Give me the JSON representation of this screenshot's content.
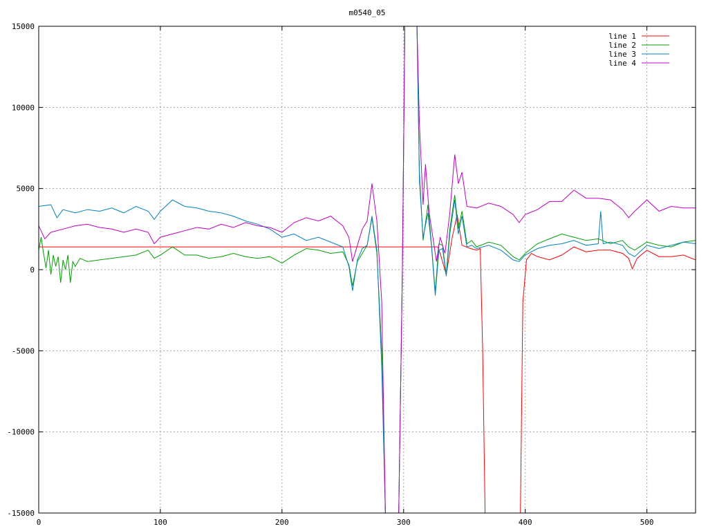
{
  "chart_data": {
    "type": "line",
    "title": "m0540_05",
    "xlabel": "",
    "ylabel": "",
    "xlim": [
      0,
      540
    ],
    "ylim": [
      -15000,
      15000
    ],
    "x_ticks": [
      0,
      100,
      200,
      300,
      400,
      500
    ],
    "y_ticks": [
      -15000,
      -10000,
      -5000,
      0,
      5000,
      10000,
      15000
    ],
    "x_tick_labels": [
      "0",
      "100",
      "200",
      "300",
      "400",
      "500"
    ],
    "y_tick_labels": [
      "-15000",
      "-10000",
      "-5000",
      "0",
      "5000",
      "10000",
      "15000"
    ],
    "grid": true,
    "legend_position": "top-right",
    "series": [
      {
        "name": "line 1",
        "color": "#ff0000",
        "points": [
          [
            0,
            1400
          ],
          [
            100,
            1400
          ],
          [
            200,
            1400
          ],
          [
            300,
            1400
          ],
          [
            328,
            1400
          ],
          [
            330,
            1000
          ],
          [
            335,
            -300
          ],
          [
            340,
            2000
          ],
          [
            344,
            3400
          ],
          [
            348,
            1500
          ],
          [
            355,
            1300
          ],
          [
            360,
            1200
          ],
          [
            363,
            1300
          ],
          [
            365,
            -5000
          ],
          [
            367,
            -15000
          ],
          [
            396,
            -15000
          ],
          [
            398,
            -2000
          ],
          [
            401,
            600
          ],
          [
            405,
            1000
          ],
          [
            410,
            800
          ],
          [
            420,
            600
          ],
          [
            430,
            900
          ],
          [
            440,
            1400
          ],
          [
            450,
            1100
          ],
          [
            460,
            1200
          ],
          [
            470,
            1200
          ],
          [
            480,
            1000
          ],
          [
            485,
            700
          ],
          [
            488,
            50
          ],
          [
            492,
            700
          ],
          [
            500,
            1200
          ],
          [
            510,
            800
          ],
          [
            520,
            800
          ],
          [
            530,
            900
          ],
          [
            540,
            600
          ]
        ]
      },
      {
        "name": "line 2",
        "color": "#00a000",
        "points": [
          [
            0,
            1200
          ],
          [
            2,
            2000
          ],
          [
            4,
            1000
          ],
          [
            6,
            100
          ],
          [
            8,
            1200
          ],
          [
            10,
            -300
          ],
          [
            12,
            900
          ],
          [
            14,
            200
          ],
          [
            16,
            800
          ],
          [
            18,
            -800
          ],
          [
            20,
            600
          ],
          [
            22,
            0
          ],
          [
            24,
            900
          ],
          [
            26,
            -800
          ],
          [
            28,
            500
          ],
          [
            30,
            200
          ],
          [
            34,
            700
          ],
          [
            40,
            500
          ],
          [
            50,
            600
          ],
          [
            60,
            700
          ],
          [
            70,
            800
          ],
          [
            80,
            900
          ],
          [
            90,
            1200
          ],
          [
            95,
            700
          ],
          [
            100,
            900
          ],
          [
            110,
            1400
          ],
          [
            120,
            900
          ],
          [
            130,
            900
          ],
          [
            140,
            700
          ],
          [
            150,
            800
          ],
          [
            160,
            1000
          ],
          [
            170,
            800
          ],
          [
            180,
            700
          ],
          [
            190,
            800
          ],
          [
            200,
            400
          ],
          [
            210,
            900
          ],
          [
            220,
            1300
          ],
          [
            230,
            1200
          ],
          [
            240,
            1000
          ],
          [
            250,
            1100
          ],
          [
            255,
            300
          ],
          [
            258,
            -1000
          ],
          [
            262,
            500
          ],
          [
            266,
            1000
          ],
          [
            270,
            1500
          ],
          [
            274,
            3200
          ],
          [
            278,
            1000
          ],
          [
            282,
            -5000
          ],
          [
            285,
            -15000
          ],
          [
            296,
            -15000
          ],
          [
            299,
            0
          ],
          [
            301,
            15000
          ],
          [
            311,
            15000
          ],
          [
            313,
            6000
          ],
          [
            316,
            1800
          ],
          [
            320,
            4000
          ],
          [
            323,
            1500
          ],
          [
            326,
            -1400
          ],
          [
            329,
            1600
          ],
          [
            332,
            1500
          ],
          [
            335,
            -300
          ],
          [
            338,
            2500
          ],
          [
            342,
            4600
          ],
          [
            345,
            2500
          ],
          [
            348,
            3600
          ],
          [
            352,
            1600
          ],
          [
            356,
            1800
          ],
          [
            360,
            1400
          ],
          [
            370,
            1700
          ],
          [
            380,
            1500
          ],
          [
            390,
            800
          ],
          [
            395,
            600
          ],
          [
            400,
            1000
          ],
          [
            410,
            1600
          ],
          [
            420,
            1900
          ],
          [
            430,
            2200
          ],
          [
            440,
            2000
          ],
          [
            450,
            1800
          ],
          [
            460,
            1900
          ],
          [
            470,
            1600
          ],
          [
            480,
            1800
          ],
          [
            485,
            1400
          ],
          [
            490,
            1200
          ],
          [
            500,
            1700
          ],
          [
            510,
            1500
          ],
          [
            520,
            1400
          ],
          [
            530,
            1700
          ],
          [
            540,
            1800
          ]
        ]
      },
      {
        "name": "line 3",
        "color": "#0080c0",
        "points": [
          [
            0,
            3900
          ],
          [
            10,
            4000
          ],
          [
            15,
            3200
          ],
          [
            20,
            3700
          ],
          [
            30,
            3500
          ],
          [
            40,
            3700
          ],
          [
            50,
            3600
          ],
          [
            60,
            3800
          ],
          [
            70,
            3500
          ],
          [
            80,
            3900
          ],
          [
            90,
            3600
          ],
          [
            95,
            3100
          ],
          [
            100,
            3600
          ],
          [
            110,
            4300
          ],
          [
            120,
            3900
          ],
          [
            130,
            3800
          ],
          [
            140,
            3600
          ],
          [
            150,
            3500
          ],
          [
            160,
            3300
          ],
          [
            170,
            3000
          ],
          [
            180,
            2800
          ],
          [
            190,
            2500
          ],
          [
            200,
            2000
          ],
          [
            210,
            2200
          ],
          [
            220,
            1800
          ],
          [
            230,
            2000
          ],
          [
            240,
            1700
          ],
          [
            250,
            1400
          ],
          [
            255,
            200
          ],
          [
            258,
            -1300
          ],
          [
            262,
            600
          ],
          [
            266,
            1300
          ],
          [
            270,
            1500
          ],
          [
            274,
            3300
          ],
          [
            278,
            1200
          ],
          [
            282,
            -6000
          ],
          [
            285,
            -15000
          ],
          [
            296,
            -15000
          ],
          [
            299,
            0
          ],
          [
            301,
            15000
          ],
          [
            311,
            15000
          ],
          [
            313,
            5500
          ],
          [
            316,
            2000
          ],
          [
            320,
            3500
          ],
          [
            323,
            1400
          ],
          [
            326,
            -1600
          ],
          [
            329,
            1200
          ],
          [
            332,
            1300
          ],
          [
            335,
            -400
          ],
          [
            338,
            2200
          ],
          [
            342,
            4300
          ],
          [
            345,
            2200
          ],
          [
            348,
            3300
          ],
          [
            352,
            1400
          ],
          [
            356,
            1500
          ],
          [
            360,
            1300
          ],
          [
            370,
            1500
          ],
          [
            380,
            1200
          ],
          [
            390,
            600
          ],
          [
            395,
            500
          ],
          [
            400,
            900
          ],
          [
            410,
            1300
          ],
          [
            420,
            1500
          ],
          [
            430,
            1600
          ],
          [
            440,
            1800
          ],
          [
            450,
            1500
          ],
          [
            460,
            1600
          ],
          [
            462,
            3600
          ],
          [
            464,
            1600
          ],
          [
            470,
            1700
          ],
          [
            480,
            1500
          ],
          [
            485,
            1000
          ],
          [
            490,
            800
          ],
          [
            500,
            1500
          ],
          [
            510,
            1300
          ],
          [
            520,
            1500
          ],
          [
            530,
            1700
          ],
          [
            540,
            1600
          ]
        ]
      },
      {
        "name": "line 4",
        "color": "#c000c0",
        "points": [
          [
            0,
            2700
          ],
          [
            5,
            1900
          ],
          [
            10,
            2300
          ],
          [
            20,
            2500
          ],
          [
            30,
            2700
          ],
          [
            40,
            2800
          ],
          [
            50,
            2600
          ],
          [
            60,
            2500
          ],
          [
            70,
            2300
          ],
          [
            80,
            2500
          ],
          [
            90,
            2300
          ],
          [
            95,
            1600
          ],
          [
            100,
            2000
          ],
          [
            110,
            2200
          ],
          [
            120,
            2400
          ],
          [
            130,
            2600
          ],
          [
            140,
            2500
          ],
          [
            150,
            2800
          ],
          [
            160,
            2600
          ],
          [
            170,
            2900
          ],
          [
            180,
            2700
          ],
          [
            190,
            2600
          ],
          [
            200,
            2300
          ],
          [
            210,
            2900
          ],
          [
            220,
            3200
          ],
          [
            230,
            3000
          ],
          [
            240,
            3300
          ],
          [
            250,
            2700
          ],
          [
            255,
            2000
          ],
          [
            258,
            500
          ],
          [
            262,
            1500
          ],
          [
            266,
            2500
          ],
          [
            270,
            3000
          ],
          [
            274,
            5300
          ],
          [
            278,
            3000
          ],
          [
            282,
            -2000
          ],
          [
            285,
            -15000
          ],
          [
            296,
            -15000
          ],
          [
            299,
            0
          ],
          [
            301,
            15000
          ],
          [
            311,
            15000
          ],
          [
            313,
            9000
          ],
          [
            316,
            4000
          ],
          [
            318,
            6500
          ],
          [
            321,
            3500
          ],
          [
            324,
            2000
          ],
          [
            327,
            500
          ],
          [
            330,
            2000
          ],
          [
            334,
            1000
          ],
          [
            338,
            3500
          ],
          [
            342,
            7100
          ],
          [
            345,
            5300
          ],
          [
            348,
            6000
          ],
          [
            352,
            3900
          ],
          [
            360,
            3800
          ],
          [
            370,
            4100
          ],
          [
            380,
            3900
          ],
          [
            390,
            3400
          ],
          [
            395,
            2900
          ],
          [
            400,
            3400
          ],
          [
            410,
            3700
          ],
          [
            420,
            4200
          ],
          [
            430,
            4200
          ],
          [
            440,
            4900
          ],
          [
            450,
            4400
          ],
          [
            460,
            4400
          ],
          [
            470,
            4300
          ],
          [
            480,
            3700
          ],
          [
            485,
            3200
          ],
          [
            490,
            3600
          ],
          [
            500,
            4300
          ],
          [
            510,
            3600
          ],
          [
            520,
            3900
          ],
          [
            530,
            3800
          ],
          [
            540,
            3800
          ]
        ]
      }
    ]
  }
}
